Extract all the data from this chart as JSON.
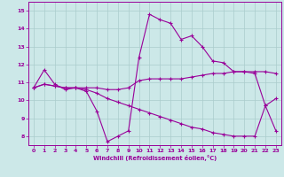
{
  "background_color": "#cce8e8",
  "line_color": "#990099",
  "grid_color": "#aacccc",
  "series": {
    "line1": [
      10.7,
      11.7,
      10.9,
      10.6,
      10.7,
      10.5,
      9.4,
      7.7,
      8.0,
      8.3,
      12.4,
      14.8,
      14.5,
      14.3,
      13.4,
      13.6,
      13.0,
      12.2,
      12.1,
      11.6,
      11.6,
      11.5,
      9.7,
      8.3
    ],
    "line2": [
      10.7,
      10.9,
      10.8,
      10.7,
      10.7,
      10.7,
      10.7,
      10.6,
      10.6,
      10.7,
      11.1,
      11.2,
      11.2,
      11.2,
      11.2,
      11.3,
      11.4,
      11.5,
      11.5,
      11.6,
      11.6,
      11.6,
      11.6,
      11.5
    ],
    "line3": [
      10.7,
      10.9,
      10.8,
      10.7,
      10.7,
      10.6,
      10.4,
      10.1,
      9.9,
      9.7,
      9.5,
      9.3,
      9.1,
      8.9,
      8.7,
      8.5,
      8.4,
      8.2,
      8.1,
      8.0,
      8.0,
      8.0,
      9.7,
      10.1
    ]
  },
  "xlim": [
    -0.5,
    23.5
  ],
  "ylim": [
    7.5,
    15.5
  ],
  "yticks": [
    8,
    9,
    10,
    11,
    12,
    13,
    14,
    15
  ],
  "xticks": [
    0,
    1,
    2,
    3,
    4,
    5,
    6,
    7,
    8,
    9,
    10,
    11,
    12,
    13,
    14,
    15,
    16,
    17,
    18,
    19,
    20,
    21,
    22,
    23
  ],
  "xlabel": "Windchill (Refroidissement éolien,°C)"
}
